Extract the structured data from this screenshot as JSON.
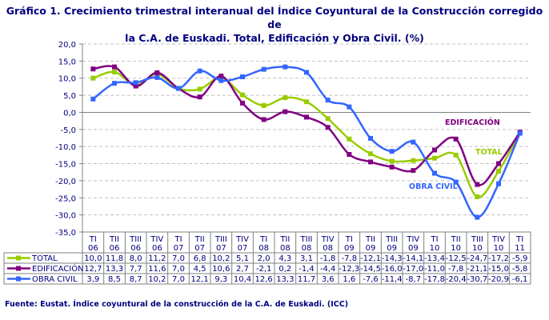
{
  "title_line1": "Gráfico 1. Crecimiento trimestral interanual del Índice Coyuntural de la Construcción corregido de",
  "title_line2": "la C.A. de Euskadi. Total, Edificación y Obra Civil. (%)",
  "source": "Fuente: Eustat. Índice coyuntural de la construcción de la C.A. de Euskadi. (ICC)",
  "chart_data": {
    "type": "line",
    "title": "Gráfico 1. Crecimiento trimestral interanual del Índice Coyuntural de la Construcción corregido de la C.A. de Euskadi. Total, Edificación y Obra Civil. (%)",
    "categories": [
      [
        "TI",
        "06"
      ],
      [
        "TII",
        "06"
      ],
      [
        "TIII",
        "06"
      ],
      [
        "TIV",
        "06"
      ],
      [
        "TI",
        "07"
      ],
      [
        "TII",
        "07"
      ],
      [
        "TIII",
        "07"
      ],
      [
        "TIV",
        "07"
      ],
      [
        "TI",
        "08"
      ],
      [
        "TII",
        "08"
      ],
      [
        "TIII",
        "08"
      ],
      [
        "TIV",
        "08"
      ],
      [
        "TI",
        "09"
      ],
      [
        "TII",
        "09"
      ],
      [
        "TIII",
        "09"
      ],
      [
        "TIV",
        "09"
      ],
      [
        "TI",
        "10"
      ],
      [
        "TII",
        "10"
      ],
      [
        "TIII",
        "10"
      ],
      [
        "TIV",
        "10"
      ],
      [
        "TI",
        "11"
      ]
    ],
    "ylim": [
      -35,
      20
    ],
    "yticks": [
      "20,0",
      "15,0",
      "10,0",
      "5,0",
      "0,0",
      "-5,0",
      "-10,0",
      "-15,0",
      "-20,0",
      "-25,0",
      "-30,0",
      "-35,0"
    ],
    "grid": true,
    "legend": "data-table-left",
    "series": [
      {
        "name": "TOTAL",
        "label": "TOTAL",
        "color": "#99cc00",
        "values": [
          10.0,
          11.8,
          8.0,
          11.2,
          7.0,
          6.8,
          10.2,
          5.1,
          2.0,
          4.3,
          3.1,
          -1.8,
          -7.8,
          -12.1,
          -14.3,
          -14.1,
          -13.4,
          -12.5,
          -24.7,
          -17.2,
          -5.9
        ],
        "text": [
          "10,0",
          "11,8",
          "8,0",
          "11,2",
          "7,0",
          "6,8",
          "10,2",
          "5,1",
          "2,0",
          "4,3",
          "3,1",
          "-1,8",
          "-7,8",
          "-12,1",
          "-14,3",
          "-14,1",
          "-13,4",
          "-12,5",
          "-24,7",
          "-17,2",
          "-5,9"
        ]
      },
      {
        "name": "EDIFICACIÓN",
        "label": "EDIFICACIÓN",
        "color": "#800080",
        "values": [
          12.7,
          13.3,
          7.7,
          11.6,
          7.0,
          4.5,
          10.6,
          2.7,
          -2.1,
          0.2,
          -1.4,
          -4.4,
          -12.3,
          -14.5,
          -16.0,
          -17.0,
          -11.0,
          -7.8,
          -21.1,
          -15.0,
          -5.8
        ],
        "text": [
          "12,7",
          "13,3",
          "7,7",
          "11,6",
          "7,0",
          "4,5",
          "10,6",
          "2,7",
          "-2,1",
          "0,2",
          "-1,4",
          "-4,4",
          "-12,3",
          "-14,5",
          "-16,0",
          "-17,0",
          "-11,0",
          "-7,8",
          "-21,1",
          "-15,0",
          "-5,8"
        ]
      },
      {
        "name": "OBRA CIVIL",
        "label": "OBRA CIVIL",
        "color": "#3366ff",
        "values": [
          3.9,
          8.5,
          8.7,
          10.2,
          7.0,
          12.1,
          9.3,
          10.4,
          12.6,
          13.3,
          11.7,
          3.6,
          1.6,
          -7.6,
          -11.4,
          -8.7,
          -17.8,
          -20.4,
          -30.7,
          -20.9,
          -6.1
        ],
        "text": [
          "3,9",
          "8,5",
          "8,7",
          "10,2",
          "7,0",
          "12,1",
          "9,3",
          "10,4",
          "12,6",
          "13,3",
          "11,7",
          "3,6",
          "1,6",
          "-7,6",
          "-11,4",
          "-8,7",
          "-17,8",
          "-20,4",
          "-30,7",
          "-20,9",
          "-6,1"
        ]
      }
    ]
  }
}
